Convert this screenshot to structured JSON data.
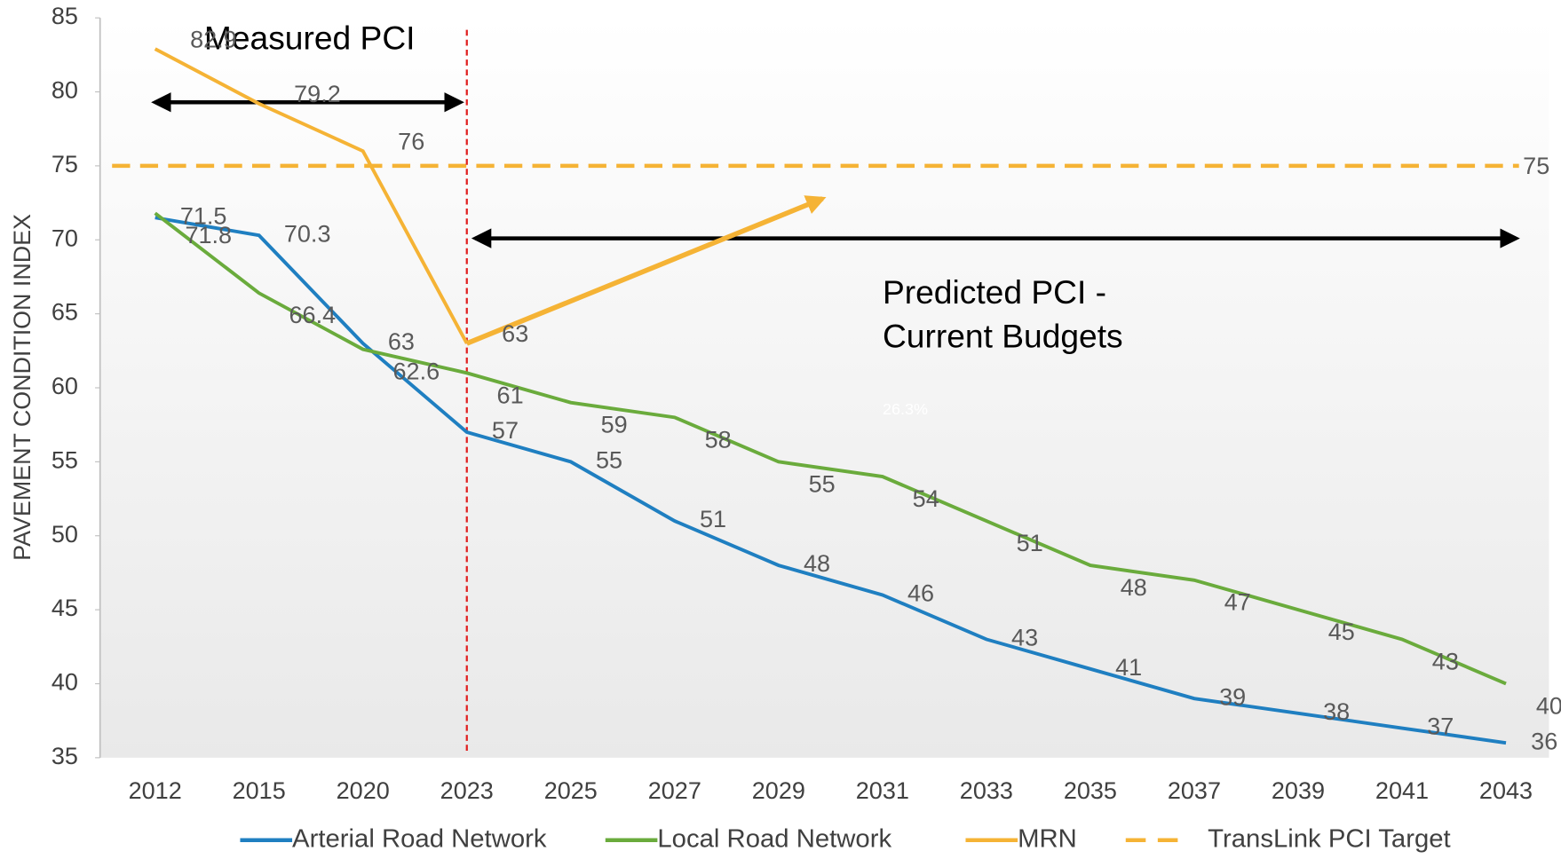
{
  "chart_data": {
    "type": "line",
    "y_label": "PAVEMENT CONDITION INDEX",
    "categories": [
      "2012",
      "2015",
      "2020",
      "2023",
      "2025",
      "2027",
      "2029",
      "2031",
      "2033",
      "2035",
      "2037",
      "2039",
      "2041",
      "2043"
    ],
    "series": [
      {
        "name": "Arterial Road Network",
        "color": "#1f7fc1",
        "values": [
          71.5,
          70.3,
          63,
          57,
          55,
          51,
          48,
          46,
          43,
          41,
          39,
          38,
          37,
          36
        ]
      },
      {
        "name": "Local Road Network",
        "color": "#6aab3c",
        "values": [
          71.8,
          66.4,
          62.6,
          61,
          59,
          58,
          55,
          54,
          51,
          48,
          47,
          45,
          43,
          40
        ]
      },
      {
        "name": "MRN",
        "color": "#f5b335",
        "values": [
          82.9,
          79.2,
          76,
          63,
          null,
          null,
          null,
          null,
          null,
          null,
          null,
          null,
          null,
          null
        ]
      }
    ],
    "target": {
      "name": "TransLink PCI Target",
      "color": "#f5b335",
      "value": 75
    },
    "annotations": [
      "Measured PCI",
      "Predicted PCI -",
      "Current Budgets",
      "26.3%"
    ],
    "ylim": [
      35,
      85
    ],
    "yticks": [
      35,
      40,
      45,
      50,
      55,
      60,
      65,
      70,
      75,
      80,
      85
    ]
  }
}
